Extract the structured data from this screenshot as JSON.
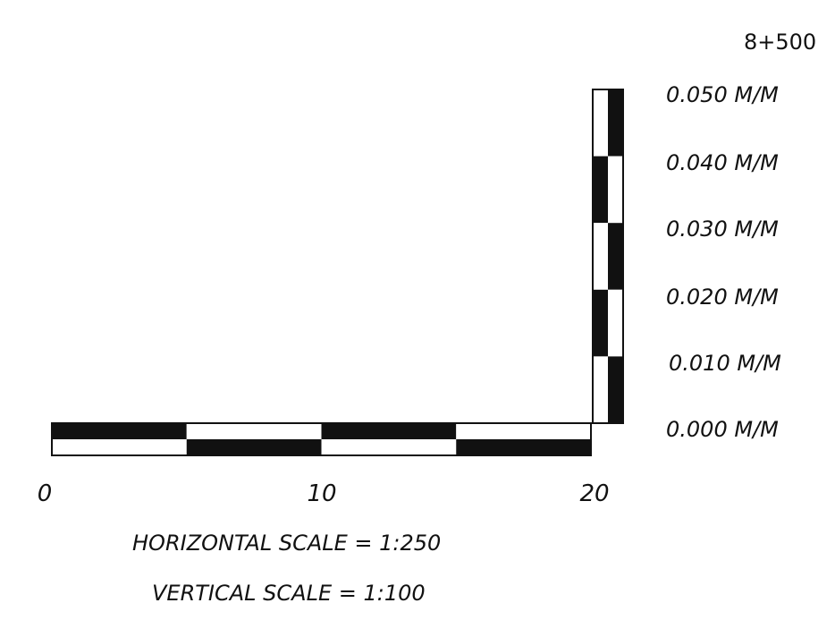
{
  "station": "8+500",
  "colors": {
    "ink": "#111111",
    "paper": "#ffffff"
  },
  "horizontal_scale": {
    "tick_labels": [
      "0",
      "10",
      "20"
    ],
    "segment_count": 4,
    "caption": "HORIZONTAL SCALE = 1:250"
  },
  "vertical_scale": {
    "tick_labels": [
      "0.050 M/M",
      "0.040 M/M",
      "0.030 M/M",
      "0.020 M/M",
      "0.010 M/M",
      "0.000 M/M"
    ],
    "segment_count": 5,
    "caption": "VERTICAL SCALE = 1:100"
  }
}
